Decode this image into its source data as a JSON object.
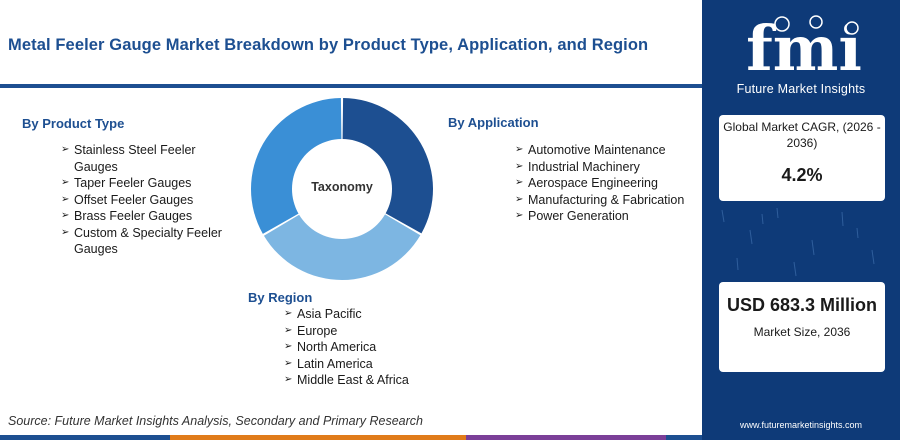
{
  "title": "Metal Feeler Gauge Market Breakdown by Product Type, Application, and Region",
  "product": {
    "heading": "By Product Type",
    "items": [
      "Stainless Steel Feeler Gauges",
      "Taper Feeler Gauges",
      "Offset Feeler Gauges",
      "Brass Feeler Gauges",
      "Custom & Specialty Feeler Gauges"
    ]
  },
  "application": {
    "heading": "By Application",
    "items": [
      "Automotive Maintenance",
      "Industrial Machinery",
      "Aerospace Engineering",
      "Manufacturing & Fabrication",
      "Power Generation"
    ]
  },
  "region": {
    "heading": "By Region",
    "items": [
      "Asia Pacific",
      "Europe",
      "North America",
      "Latin America",
      "Middle East & Africa"
    ]
  },
  "donut": {
    "label": "Taxonomy",
    "segments": [
      {
        "share": 0.333,
        "color": "#1d4f91"
      },
      {
        "share": 0.333,
        "color": "#7db6e2"
      },
      {
        "share": 0.334,
        "color": "#3a8fd6"
      }
    ]
  },
  "source": "Source: Future Market Insights Analysis, Secondary and Primary Research",
  "bottom_bar_colors": [
    "#1d4f91",
    "#e07b1a",
    "#7b3f98",
    "#1d4f91"
  ],
  "brand": {
    "logo_text": "fmi",
    "name": "Future Market Insights",
    "url": "www.futuremarketinsights.com",
    "panel_color": "#0e3a78"
  },
  "cagr": {
    "label": "Global Market CAGR, (2026 - 2036)",
    "value": "4.2%"
  },
  "market_size": {
    "value": "USD 683.3 Million",
    "label": "Market Size, 2036"
  }
}
